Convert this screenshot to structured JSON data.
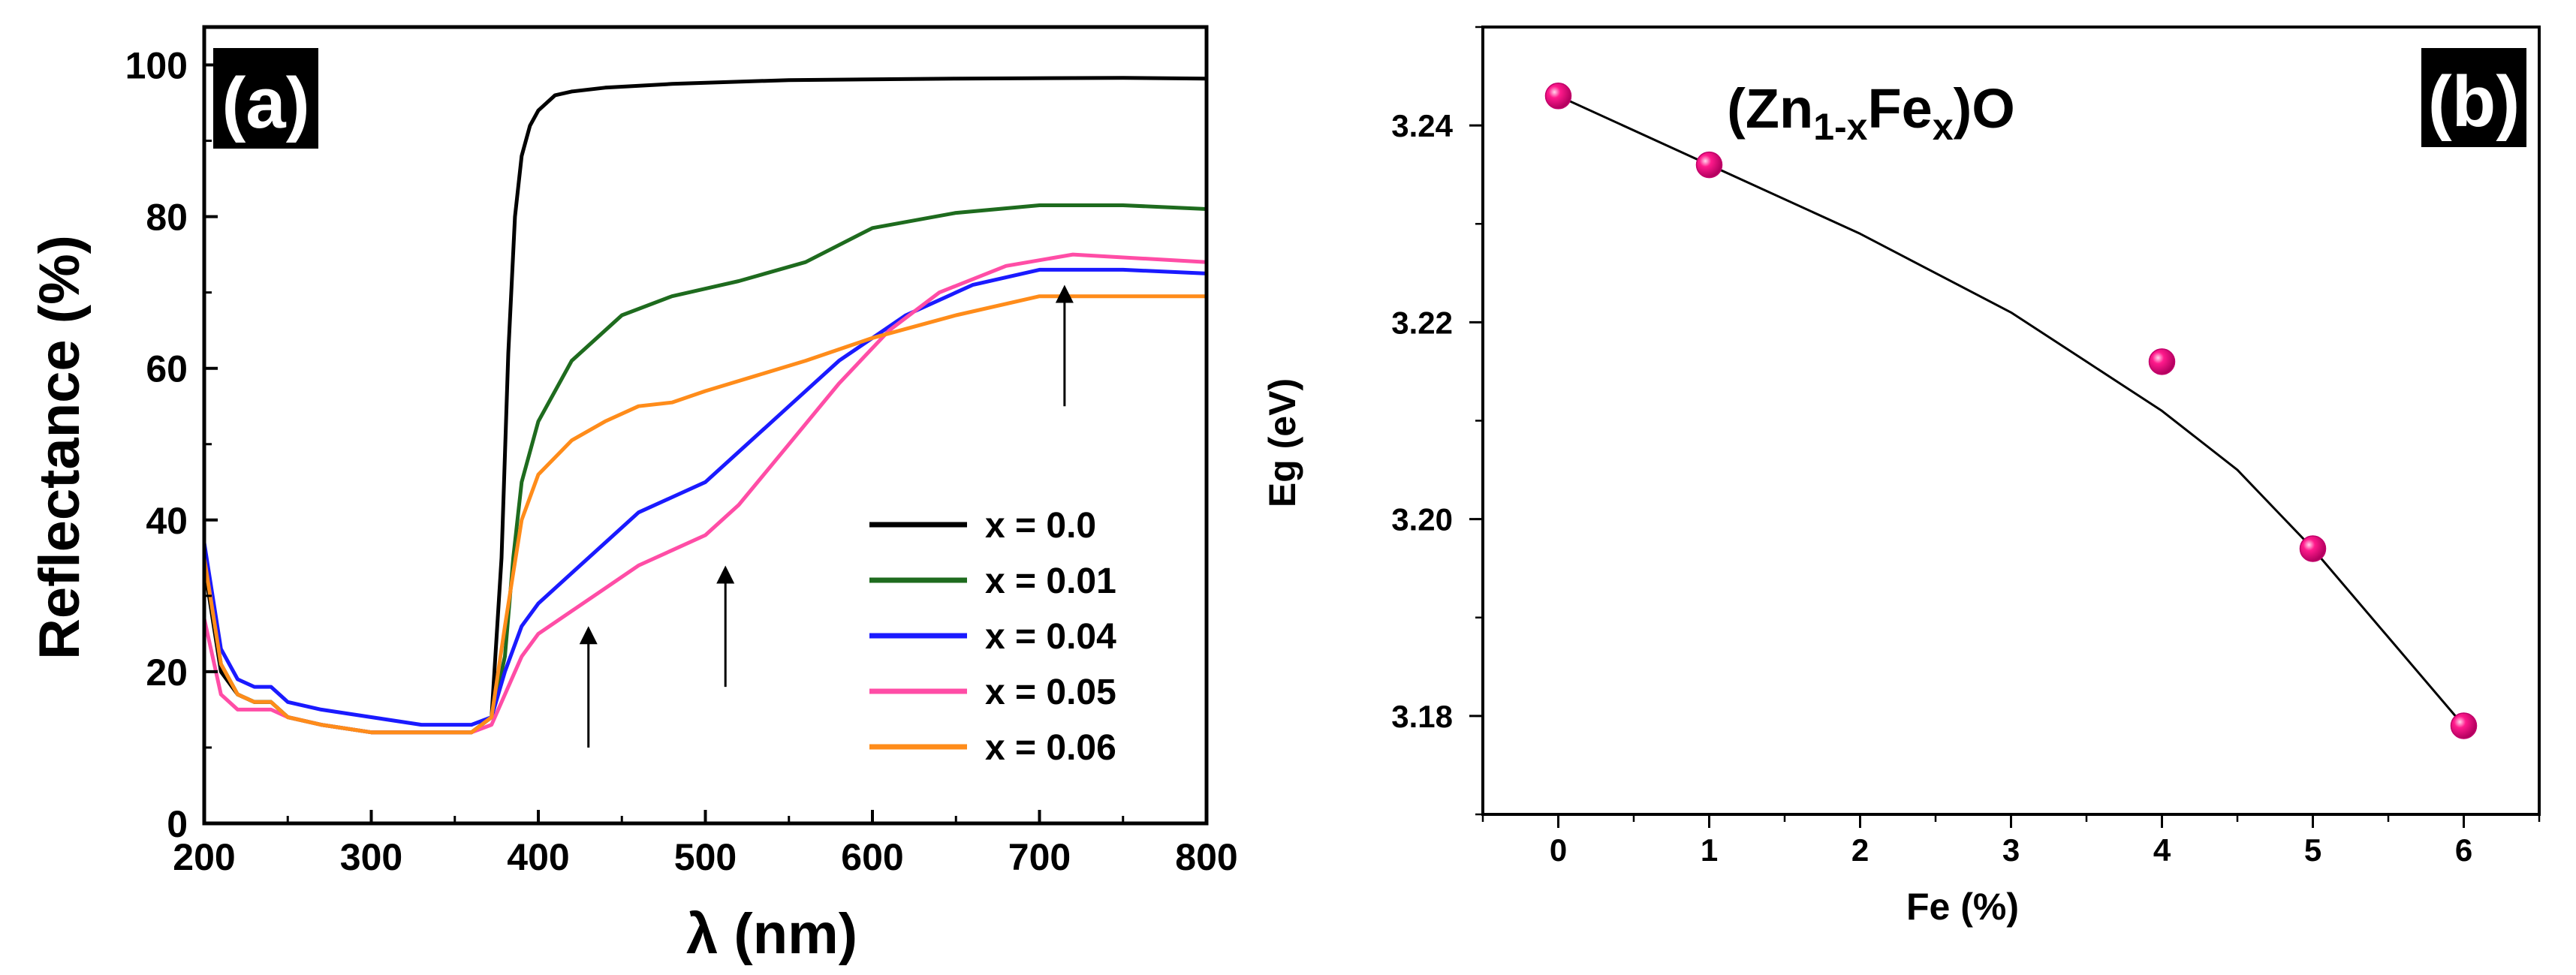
{
  "chart_data": [
    {
      "panel": "a",
      "type": "line",
      "panel_label": "(a)",
      "xlabel": "λ (nm)",
      "ylabel": "Reflectance (%)",
      "xlim": [
        200,
        800
      ],
      "ylim": [
        0,
        105
      ],
      "xticks": [
        200,
        300,
        400,
        500,
        600,
        700,
        800
      ],
      "yticks": [
        0,
        20,
        40,
        60,
        80,
        100
      ],
      "legend": {
        "position": "lower-right"
      },
      "annotations": [
        {
          "type": "arrow",
          "x": 430,
          "y_from": 10,
          "y_to": 26
        },
        {
          "type": "arrow",
          "x": 512,
          "y_from": 18,
          "y_to": 34
        },
        {
          "type": "arrow",
          "x": 715,
          "y_from": 55,
          "y_to": 71
        }
      ],
      "series": [
        {
          "name": "x = 0.0",
          "color": "#000000",
          "x": [
            200,
            210,
            220,
            230,
            240,
            250,
            270,
            300,
            330,
            360,
            372,
            378,
            382,
            386,
            390,
            395,
            400,
            410,
            420,
            440,
            480,
            550,
            650,
            750,
            800
          ],
          "y": [
            34,
            20,
            17,
            16,
            16,
            14,
            13,
            12,
            12,
            12,
            14,
            35,
            62,
            80,
            88,
            92,
            94,
            96,
            96.5,
            97,
            97.5,
            98,
            98.2,
            98.3,
            98.2
          ]
        },
        {
          "name": "x = 0.01",
          "color": "#1e6b1e",
          "x": [
            200,
            210,
            220,
            230,
            240,
            250,
            270,
            300,
            330,
            360,
            372,
            380,
            385,
            390,
            400,
            420,
            450,
            480,
            520,
            560,
            600,
            650,
            700,
            750,
            800
          ],
          "y": [
            35,
            21,
            17,
            16,
            16,
            14,
            13,
            12,
            12,
            12,
            14,
            22,
            35,
            45,
            53,
            61,
            67,
            69.5,
            71.5,
            74,
            78.5,
            80.5,
            81.5,
            81.5,
            81
          ]
        },
        {
          "name": "x = 0.04",
          "color": "#1a1aff",
          "x": [
            200,
            210,
            220,
            230,
            240,
            250,
            270,
            300,
            330,
            360,
            372,
            380,
            390,
            400,
            420,
            440,
            460,
            480,
            500,
            520,
            550,
            580,
            620,
            660,
            700,
            750,
            800
          ],
          "y": [
            37,
            23,
            19,
            18,
            18,
            16,
            15,
            14,
            13,
            13,
            14,
            20,
            26,
            29,
            33,
            37,
            41,
            43,
            45,
            49,
            55,
            61,
            67,
            71,
            73,
            73,
            72.5
          ]
        },
        {
          "name": "x = 0.05",
          "color": "#ff4da6",
          "x": [
            200,
            210,
            220,
            230,
            240,
            250,
            270,
            300,
            330,
            360,
            372,
            380,
            390,
            400,
            420,
            440,
            460,
            480,
            500,
            520,
            550,
            580,
            610,
            640,
            680,
            720,
            760,
            800
          ],
          "y": [
            27,
            17,
            15,
            15,
            15,
            14,
            13,
            12,
            12,
            12,
            13,
            17,
            22,
            25,
            28,
            31,
            34,
            36,
            38,
            42,
            50,
            58,
            65,
            70,
            73.5,
            75,
            74.5,
            74
          ]
        },
        {
          "name": "x = 0.06",
          "color": "#ff8c1a",
          "x": [
            200,
            210,
            220,
            230,
            240,
            250,
            270,
            300,
            330,
            360,
            372,
            380,
            385,
            390,
            400,
            420,
            440,
            460,
            480,
            500,
            530,
            560,
            600,
            650,
            700,
            750,
            800
          ],
          "y": [
            35,
            21,
            17,
            16,
            16,
            14,
            13,
            12,
            12,
            12,
            14,
            26,
            33,
            40,
            46,
            50.5,
            53,
            55,
            55.5,
            57,
            59,
            61,
            64,
            67,
            69.5,
            69.5,
            69.5
          ]
        }
      ]
    },
    {
      "panel": "b",
      "type": "scatter",
      "panel_label": "(b)",
      "title_parts": [
        "(Zn",
        "1-x",
        "Fe",
        "x",
        ")O"
      ],
      "xlabel": "Fe (%)",
      "ylabel": "Eg (eV)",
      "xlim": [
        -0.5,
        6.5
      ],
      "ylim": [
        3.17,
        3.25
      ],
      "xticks": [
        0,
        1,
        2,
        3,
        4,
        5,
        6
      ],
      "yticks": [
        3.18,
        3.2,
        3.22,
        3.24
      ],
      "ytick_labels": [
        "3.18",
        "3.20",
        "3.22",
        "3.24"
      ],
      "marker_color": "#ff1a8c",
      "points": {
        "x": [
          0,
          1,
          4,
          5,
          6
        ],
        "y": [
          3.243,
          3.236,
          3.216,
          3.197,
          3.179
        ]
      },
      "fit_line": {
        "x": [
          0,
          1,
          2,
          3,
          3.5,
          4,
          4.5,
          5,
          5.5,
          6
        ],
        "y": [
          3.243,
          3.236,
          3.229,
          3.221,
          3.216,
          3.211,
          3.205,
          3.197,
          3.188,
          3.179
        ]
      }
    }
  ]
}
